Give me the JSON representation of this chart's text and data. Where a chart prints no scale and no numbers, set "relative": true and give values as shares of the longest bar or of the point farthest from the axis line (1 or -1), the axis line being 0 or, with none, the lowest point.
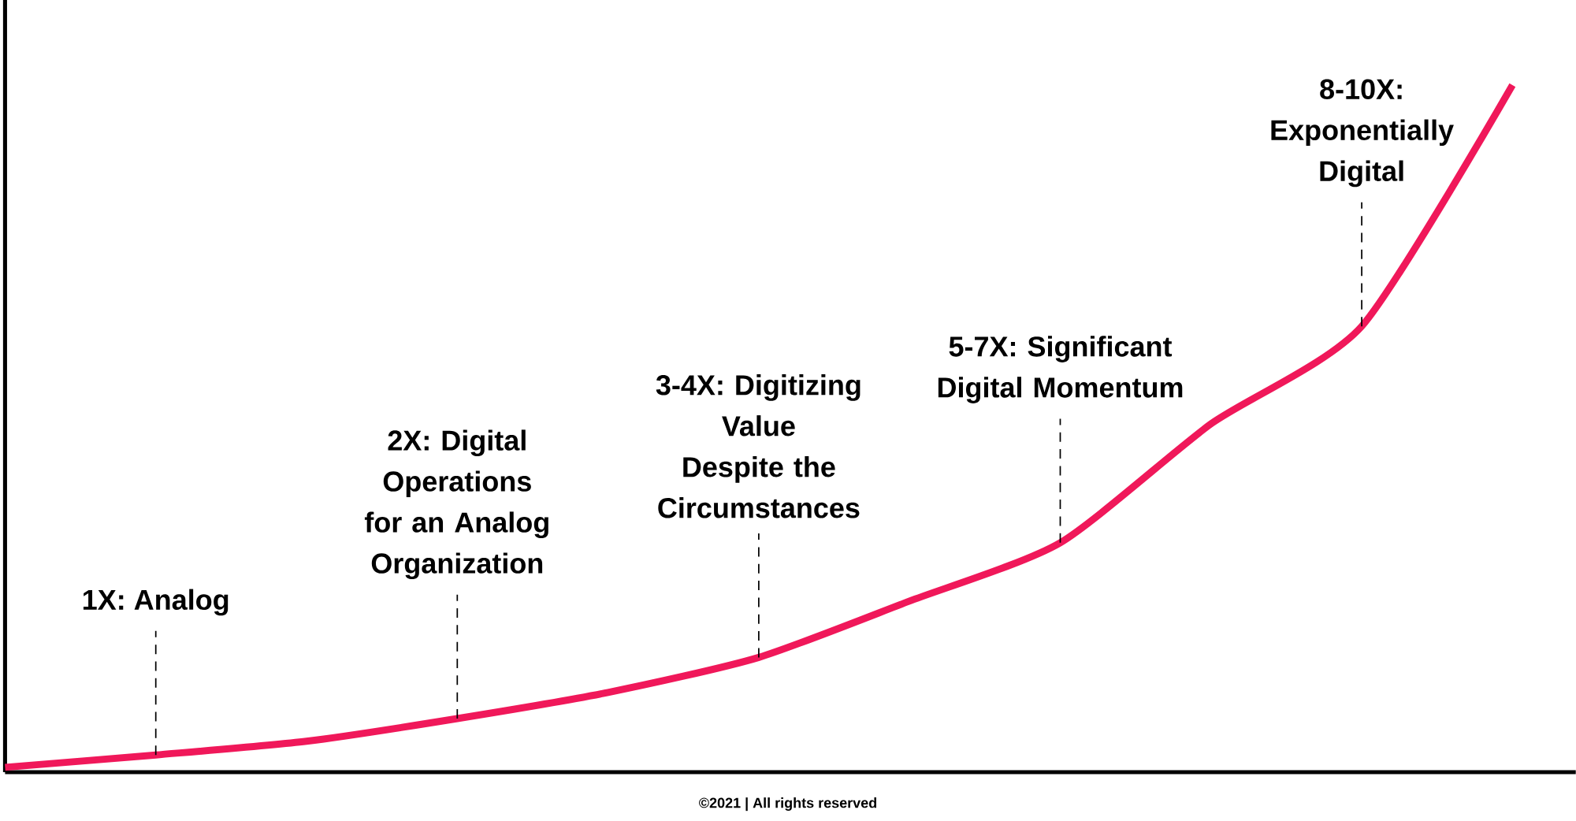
{
  "chart_data": {
    "type": "line",
    "relative": true,
    "color": "#f0185a",
    "categories": [
      null,
      null,
      null,
      null,
      null,
      null,
      null,
      null,
      null,
      null,
      null
    ],
    "values": [
      0.007,
      0.025,
      0.045,
      0.078,
      0.116,
      0.167,
      0.249,
      0.334,
      0.507,
      0.649,
      1
    ],
    "annotations": [
      "1X: Analog",
      "2X: Digital Operations for an Analog Organization",
      "3-4X: Digitizing Value Despite the Circumstances",
      "5-7X: Significant Digital Momentum",
      "8-10X: Exponentially Digital",
      "©2021 | All rights reserved"
    ]
  }
}
